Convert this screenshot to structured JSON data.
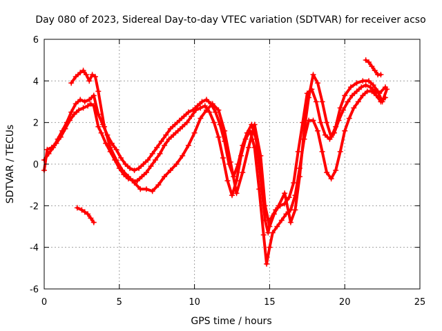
{
  "chart_data": {
    "type": "scatter",
    "title": "Day 080 of 2023, Sidereal Day-to-day VTEC variation (SDTVAR) for receiver acso",
    "xlabel": "GPS time / hours",
    "ylabel": "SDTVAR / TECUs",
    "xlim": [
      0,
      25
    ],
    "ylim": [
      -6,
      6
    ],
    "xticks": [
      0,
      5,
      10,
      15,
      20,
      25
    ],
    "yticks": [
      -6,
      -4,
      -2,
      0,
      2,
      4,
      6
    ],
    "grid": true,
    "marker": "+",
    "color": "#ff0000",
    "series": [
      {
        "values": [
          [
            0.0,
            -0.3
          ],
          [
            0.2,
            0.7
          ],
          [
            0.5,
            0.8
          ],
          [
            0.8,
            1.0
          ],
          [
            1.1,
            1.3
          ],
          [
            1.4,
            1.7
          ],
          [
            1.7,
            2.1
          ],
          [
            2.0,
            2.4
          ],
          [
            2.3,
            2.6
          ],
          [
            2.6,
            2.7
          ],
          [
            2.9,
            2.8
          ],
          [
            3.1,
            2.9
          ],
          [
            3.3,
            2.8
          ],
          [
            3.6,
            1.8
          ],
          [
            3.8,
            1.5
          ],
          [
            4.1,
            1.0
          ],
          [
            4.4,
            0.6
          ],
          [
            4.7,
            0.2
          ],
          [
            5.0,
            -0.2
          ],
          [
            5.3,
            -0.5
          ],
          [
            5.6,
            -0.7
          ],
          [
            5.9,
            -0.8
          ],
          [
            6.2,
            -0.8
          ],
          [
            6.5,
            -0.6
          ],
          [
            6.8,
            -0.4
          ],
          [
            7.1,
            -0.1
          ],
          [
            7.4,
            0.2
          ],
          [
            7.7,
            0.5
          ],
          [
            8.0,
            0.9
          ],
          [
            8.3,
            1.2
          ],
          [
            8.6,
            1.4
          ],
          [
            8.9,
            1.6
          ],
          [
            9.2,
            1.8
          ],
          [
            9.5,
            2.0
          ],
          [
            9.8,
            2.3
          ],
          [
            10.1,
            2.6
          ],
          [
            10.4,
            2.7
          ],
          [
            10.7,
            2.8
          ],
          [
            11.0,
            2.5
          ],
          [
            11.3,
            2.0
          ],
          [
            11.6,
            1.3
          ],
          [
            11.9,
            0.3
          ],
          [
            12.2,
            -0.8
          ],
          [
            12.5,
            -1.5
          ],
          [
            12.8,
            -0.8
          ],
          [
            13.1,
            0.4
          ],
          [
            13.4,
            1.2
          ],
          [
            13.7,
            1.6
          ],
          [
            14.0,
            0.8
          ],
          [
            14.3,
            -1.2
          ],
          [
            14.6,
            -3.4
          ],
          [
            14.8,
            -4.8
          ],
          [
            15.0,
            -4.0
          ],
          [
            15.2,
            -3.3
          ],
          [
            15.5,
            -3.0
          ],
          [
            15.8,
            -2.7
          ],
          [
            16.1,
            -2.4
          ],
          [
            16.4,
            -2.2
          ],
          [
            16.7,
            -1.5
          ],
          [
            17.0,
            -0.2
          ],
          [
            17.3,
            1.2
          ],
          [
            17.6,
            2.1
          ],
          [
            17.9,
            2.1
          ],
          [
            18.2,
            1.6
          ],
          [
            18.5,
            0.6
          ],
          [
            18.8,
            -0.4
          ],
          [
            19.1,
            -0.7
          ],
          [
            19.4,
            -0.3
          ],
          [
            19.7,
            0.6
          ],
          [
            20.0,
            1.6
          ],
          [
            20.3,
            2.2
          ],
          [
            20.6,
            2.7
          ],
          [
            20.9,
            3.0
          ],
          [
            21.2,
            3.3
          ],
          [
            21.5,
            3.5
          ],
          [
            21.8,
            3.5
          ],
          [
            22.1,
            3.3
          ],
          [
            22.4,
            3.0
          ],
          [
            22.7,
            3.2
          ]
        ]
      },
      {
        "values": [
          [
            0.0,
            0.2
          ],
          [
            0.3,
            0.5
          ],
          [
            0.6,
            0.8
          ],
          [
            0.9,
            1.2
          ],
          [
            1.2,
            1.6
          ],
          [
            1.5,
            2.0
          ],
          [
            1.8,
            2.5
          ],
          [
            2.1,
            2.9
          ],
          [
            2.4,
            3.1
          ],
          [
            2.7,
            3.0
          ],
          [
            3.0,
            3.1
          ],
          [
            3.3,
            3.3
          ],
          [
            3.6,
            2.4
          ],
          [
            3.9,
            1.9
          ],
          [
            4.2,
            1.4
          ],
          [
            4.5,
            1.0
          ],
          [
            4.8,
            0.7
          ],
          [
            5.1,
            0.3
          ],
          [
            5.4,
            0.0
          ],
          [
            5.7,
            -0.2
          ],
          [
            6.0,
            -0.3
          ],
          [
            6.3,
            -0.2
          ],
          [
            6.6,
            0.0
          ],
          [
            6.9,
            0.2
          ],
          [
            7.2,
            0.5
          ],
          [
            7.5,
            0.8
          ],
          [
            7.8,
            1.1
          ],
          [
            8.1,
            1.4
          ],
          [
            8.4,
            1.7
          ],
          [
            8.7,
            1.9
          ],
          [
            9.0,
            2.1
          ],
          [
            9.3,
            2.3
          ],
          [
            9.6,
            2.5
          ],
          [
            9.9,
            2.6
          ],
          [
            10.2,
            2.8
          ],
          [
            10.5,
            3.0
          ],
          [
            10.8,
            3.1
          ],
          [
            11.1,
            2.9
          ],
          [
            11.4,
            2.5
          ],
          [
            11.7,
            1.9
          ],
          [
            12.0,
            1.1
          ],
          [
            12.3,
            0.0
          ],
          [
            12.6,
            -0.6
          ],
          [
            12.9,
            0.0
          ],
          [
            13.2,
            0.9
          ],
          [
            13.5,
            1.5
          ],
          [
            13.8,
            1.9
          ],
          [
            14.1,
            1.2
          ],
          [
            14.4,
            -0.6
          ],
          [
            14.7,
            -2.7
          ],
          [
            14.9,
            -3.3
          ],
          [
            15.1,
            -2.6
          ],
          [
            15.4,
            -2.2
          ],
          [
            15.7,
            -2.0
          ],
          [
            16.0,
            -1.9
          ],
          [
            16.3,
            -1.6
          ],
          [
            16.6,
            -0.9
          ],
          [
            16.9,
            0.6
          ],
          [
            17.2,
            2.0
          ],
          [
            17.5,
            3.4
          ],
          [
            17.8,
            3.6
          ],
          [
            18.1,
            3.0
          ],
          [
            18.4,
            2.0
          ],
          [
            18.7,
            1.4
          ],
          [
            19.0,
            1.2
          ],
          [
            19.3,
            1.5
          ],
          [
            19.6,
            2.1
          ],
          [
            19.9,
            2.6
          ],
          [
            20.2,
            3.0
          ],
          [
            20.5,
            3.3
          ],
          [
            20.8,
            3.5
          ],
          [
            21.1,
            3.7
          ],
          [
            21.4,
            3.8
          ],
          [
            21.7,
            3.7
          ],
          [
            22.0,
            3.5
          ],
          [
            22.3,
            3.4
          ],
          [
            22.7,
            3.7
          ]
        ]
      },
      {
        "values": [
          [
            1.8,
            3.9
          ],
          [
            2.1,
            4.2
          ],
          [
            2.4,
            4.4
          ],
          [
            2.6,
            4.5
          ],
          [
            2.8,
            4.3
          ],
          [
            3.0,
            4.0
          ],
          [
            3.2,
            4.3
          ],
          [
            3.4,
            4.2
          ],
          [
            3.6,
            3.5
          ],
          [
            4.0,
            1.8
          ],
          [
            4.4,
            0.8
          ],
          [
            4.8,
            0.2
          ],
          [
            5.2,
            -0.3
          ],
          [
            5.6,
            -0.6
          ],
          [
            6.0,
            -0.9
          ],
          [
            6.4,
            -1.2
          ],
          [
            6.8,
            -1.2
          ],
          [
            7.2,
            -1.3
          ],
          [
            7.6,
            -1.0
          ],
          [
            8.0,
            -0.6
          ],
          [
            8.4,
            -0.3
          ],
          [
            8.8,
            0.0
          ],
          [
            9.2,
            0.4
          ],
          [
            9.6,
            0.9
          ],
          [
            10.0,
            1.5
          ],
          [
            10.4,
            2.2
          ],
          [
            10.8,
            2.6
          ],
          [
            11.2,
            2.9
          ],
          [
            11.6,
            2.6
          ],
          [
            12.0,
            1.6
          ],
          [
            12.4,
            0.1
          ],
          [
            12.8,
            -1.4
          ],
          [
            13.2,
            -0.4
          ],
          [
            13.6,
            0.8
          ],
          [
            14.0,
            1.9
          ],
          [
            14.4,
            0.4
          ],
          [
            14.7,
            -2.0
          ],
          [
            15.0,
            -3.0
          ],
          [
            15.3,
            -2.4
          ],
          [
            15.6,
            -2.0
          ],
          [
            16.0,
            -1.4
          ],
          [
            16.4,
            -2.8
          ],
          [
            16.7,
            -2.2
          ],
          [
            17.0,
            -0.6
          ],
          [
            17.3,
            1.6
          ],
          [
            17.6,
            3.2
          ],
          [
            17.9,
            4.3
          ],
          [
            18.2,
            3.9
          ],
          [
            18.5,
            3.0
          ],
          [
            18.8,
            2.0
          ],
          [
            19.1,
            1.3
          ],
          [
            19.4,
            1.8
          ],
          [
            19.7,
            2.7
          ],
          [
            20.0,
            3.3
          ],
          [
            20.4,
            3.7
          ],
          [
            20.8,
            3.9
          ],
          [
            21.2,
            4.0
          ],
          [
            21.6,
            4.0
          ],
          [
            21.9,
            3.8
          ],
          [
            22.2,
            3.5
          ],
          [
            22.5,
            3.0
          ],
          [
            22.8,
            3.6
          ]
        ]
      },
      {
        "values": [
          [
            2.2,
            -2.1
          ],
          [
            2.5,
            -2.2
          ],
          [
            2.7,
            -2.3
          ],
          [
            2.9,
            -2.4
          ],
          [
            3.1,
            -2.6
          ],
          [
            3.3,
            -2.8
          ]
        ]
      },
      {
        "values": [
          [
            21.4,
            5.0
          ],
          [
            21.6,
            4.9
          ],
          [
            21.8,
            4.7
          ],
          [
            22.0,
            4.5
          ],
          [
            22.2,
            4.3
          ],
          [
            22.4,
            4.3
          ]
        ]
      }
    ]
  }
}
